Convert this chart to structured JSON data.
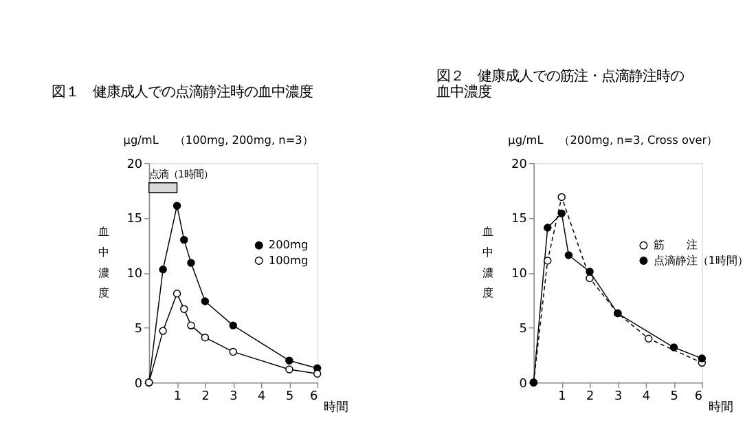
{
  "chart_data": [
    {
      "type": "line",
      "title": "図１　健康成人での点滴静注時の血中濃度",
      "subtitle": "（100mg, 200mg, n=3）",
      "ylabel": "血中濃度",
      "xlabel": "時間",
      "annotations": [
        "μg/mL"
      ],
      "xlim": [
        0,
        6
      ],
      "xticks": [
        1,
        2,
        3,
        4,
        5,
        6
      ],
      "ylim": [
        0,
        20
      ],
      "yticks": [
        0,
        5,
        10,
        15,
        20
      ],
      "legend": "right",
      "marker": "circle",
      "line_style": "solid",
      "bands": [
        {
          "axis": "x",
          "from": 0,
          "to": 1,
          "label": "点滴（1時間）"
        }
      ],
      "series": [
        {
          "name": "200mg",
          "color": "#000000",
          "x": [
            0,
            0.5,
            1,
            1.25,
            1.5,
            2,
            3,
            5,
            6
          ],
          "values": [
            0,
            10.3,
            16.1,
            13.0,
            10.9,
            7.4,
            5.2,
            2.0,
            1.3
          ]
        },
        {
          "name": "100mg",
          "color": "#000000",
          "x": [
            0,
            0.5,
            1,
            1.25,
            1.5,
            2,
            3,
            5,
            6
          ],
          "values": [
            0,
            4.7,
            8.1,
            6.7,
            5.2,
            4.1,
            2.8,
            1.2,
            0.8
          ]
        }
      ]
    },
    {
      "type": "line",
      "title": "図２　健康成人での筋注・点滴静注時の血中濃度",
      "subtitle": "（200mg, n=3, Cross over）",
      "ylabel": "血中濃度",
      "xlabel": "時間",
      "annotations": [
        "μg/mL"
      ],
      "xlim": [
        0,
        6
      ],
      "xticks": [
        1,
        2,
        3,
        4,
        5,
        6
      ],
      "ylim": [
        0,
        20
      ],
      "yticks": [
        0,
        5,
        10,
        15,
        20
      ],
      "legend": "right",
      "marker": "circle",
      "series": [
        {
          "name": "筋　　注",
          "color": "#000000",
          "line_style": "dashed",
          "x": [
            0,
            0.5,
            1,
            2,
            3,
            4.1,
            6
          ],
          "values": [
            0,
            11.1,
            16.9,
            9.5,
            6.3,
            4.0,
            1.8
          ]
        },
        {
          "name": "点滴静注（1時間）",
          "color": "#000000",
          "line_style": "solid",
          "x": [
            0,
            0.5,
            1,
            1.25,
            2,
            3,
            5,
            6
          ],
          "values": [
            0,
            14.1,
            15.4,
            11.6,
            10.1,
            6.3,
            3.2,
            2.2
          ]
        }
      ]
    }
  ]
}
